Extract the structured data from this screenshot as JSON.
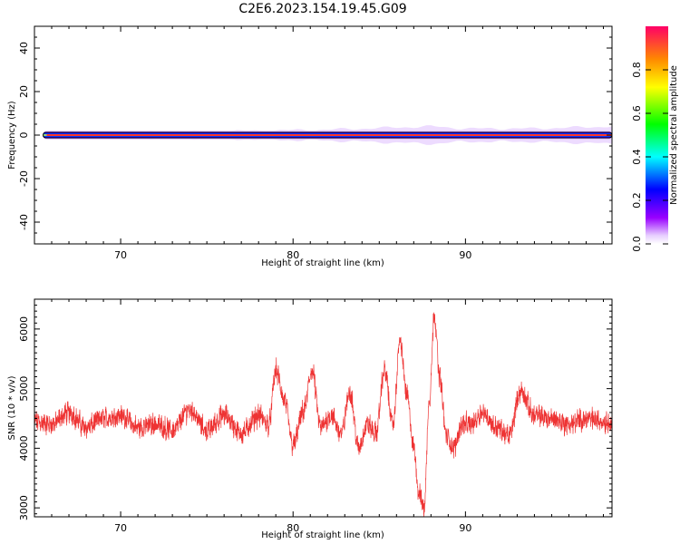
{
  "chart_data": [
    {
      "type": "heatmap",
      "title": "C2E6.2023.154.19.45.G09",
      "xlabel": "Height of straight line (km)",
      "ylabel": "Frequency (Hz)",
      "xlim": [
        65.0,
        98.5
      ],
      "ylim": [
        -50,
        50
      ],
      "xticks": [
        70,
        80,
        90
      ],
      "yticks": [
        40,
        20,
        0,
        -20,
        -40
      ],
      "colorbar": {
        "label": "Normalized spectral amplitude",
        "range": [
          0.0,
          1.0
        ],
        "ticks": [
          "0.0",
          "0.2",
          "0.4",
          "0.6",
          "0.8"
        ]
      },
      "band": [
        {
          "x": 65.5,
          "half_width_hz": 1.0
        },
        {
          "x": 70,
          "half_width_hz": 1.2
        },
        {
          "x": 74,
          "half_width_hz": 1.5
        },
        {
          "x": 78,
          "half_width_hz": 2.0
        },
        {
          "x": 82,
          "half_width_hz": 2.5
        },
        {
          "x": 86,
          "half_width_hz": 3.5
        },
        {
          "x": 88,
          "half_width_hz": 4.0
        },
        {
          "x": 90,
          "half_width_hz": 3.0
        },
        {
          "x": 94,
          "half_width_hz": 3.0
        },
        {
          "x": 98.5,
          "half_width_hz": 4.0
        }
      ]
    },
    {
      "type": "line",
      "xlabel": "Height of straight line (km)",
      "ylabel": "SNR (10 * v/v)",
      "xlim": [
        65.0,
        98.5
      ],
      "ylim": [
        2850,
        6500
      ],
      "xticks": [
        70,
        80,
        90
      ],
      "yticks": [
        3000,
        4000,
        5000,
        6000
      ],
      "line_color": "#ee3333",
      "series": [
        {
          "x": [
            65.0,
            66.0,
            67.0,
            68.0,
            69.0,
            70.0,
            71.0,
            72.0,
            73.0,
            74.0,
            75.0,
            76.0,
            77.0,
            78.0,
            78.6,
            79.0,
            79.5,
            80.0,
            80.6,
            81.1,
            81.6,
            82.2,
            82.8,
            83.3,
            83.8,
            84.3,
            84.8,
            85.3,
            85.8,
            86.2,
            86.6,
            87.0,
            87.3,
            87.6,
            87.9,
            88.2,
            88.5,
            88.9,
            89.3,
            89.8,
            90.3,
            91.0,
            91.8,
            92.5,
            93.2,
            94.0,
            95.0,
            96.0,
            97.0,
            98.0,
            98.5
          ],
          "y": [
            4450,
            4400,
            4600,
            4350,
            4500,
            4550,
            4350,
            4400,
            4300,
            4650,
            4300,
            4550,
            4250,
            4550,
            4400,
            5300,
            4800,
            4050,
            4600,
            5300,
            4350,
            4550,
            4250,
            4950,
            4000,
            4400,
            4250,
            5300,
            4400,
            5800,
            4900,
            4000,
            3250,
            3000,
            4800,
            6250,
            5200,
            4200,
            4000,
            4400,
            4400,
            4600,
            4350,
            4200,
            4950,
            4550,
            4500,
            4400,
            4500,
            4450,
            4450
          ]
        }
      ]
    }
  ],
  "colors": {
    "line": "#ee3333",
    "axis": "#000000",
    "background": "#ffffff"
  }
}
